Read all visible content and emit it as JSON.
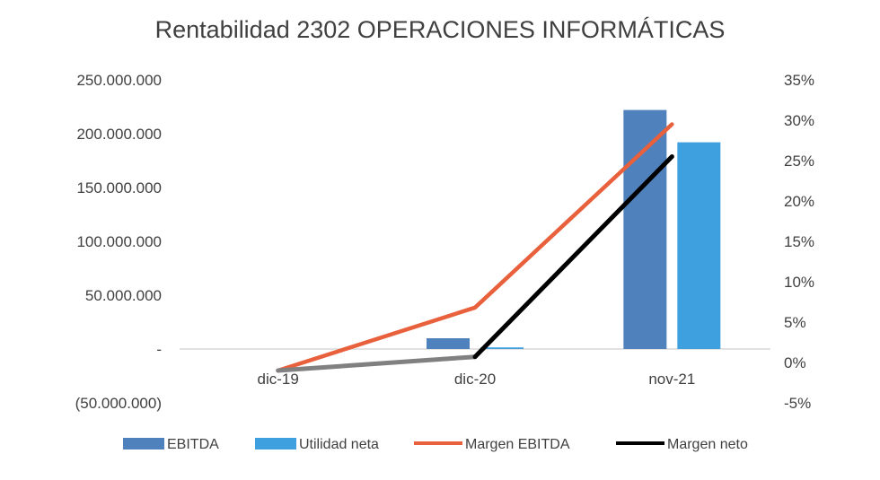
{
  "chart_data": {
    "type": "bar",
    "title": "Rentabilidad 2302 OPERACIONES INFORMÁTICAS",
    "categories": [
      "dic-19",
      "dic-20",
      "nov-21"
    ],
    "y_left": {
      "ylim": [
        -50000000,
        250000000
      ],
      "ticks": [
        -50000000,
        0,
        50000000,
        100000000,
        150000000,
        200000000,
        250000000
      ],
      "tick_labels": [
        "(50.000.000)",
        "-",
        "50.000.000",
        "100.000.000",
        "150.000.000",
        "200.000.000",
        "250.000.000"
      ]
    },
    "y_right": {
      "ylim": [
        -5,
        35
      ],
      "ticks": [
        -5,
        0,
        5,
        10,
        15,
        20,
        25,
        30,
        35
      ],
      "tick_labels": [
        "-5%",
        "0%",
        "5%",
        "10%",
        "15%",
        "20%",
        "25%",
        "30%",
        "35%"
      ]
    },
    "bar_series": [
      {
        "name": "EBITDA",
        "color": "#4F81BD",
        "values": [
          0,
          10000000,
          222000000
        ]
      },
      {
        "name": "Utilidad neta",
        "color": "#3FA0DF",
        "values": [
          0,
          1500000,
          192000000
        ]
      }
    ],
    "line_series": [
      {
        "name": "Margen EBITDA",
        "color": "#E8603C",
        "axis": "right",
        "values": [
          -1,
          6.8,
          29.5
        ]
      },
      {
        "name": "Margen neto",
        "color": "#000000",
        "axis": "right",
        "values": [
          -1,
          0.7,
          25.5
        ]
      }
    ],
    "legend_position": "bottom",
    "grid": false
  }
}
